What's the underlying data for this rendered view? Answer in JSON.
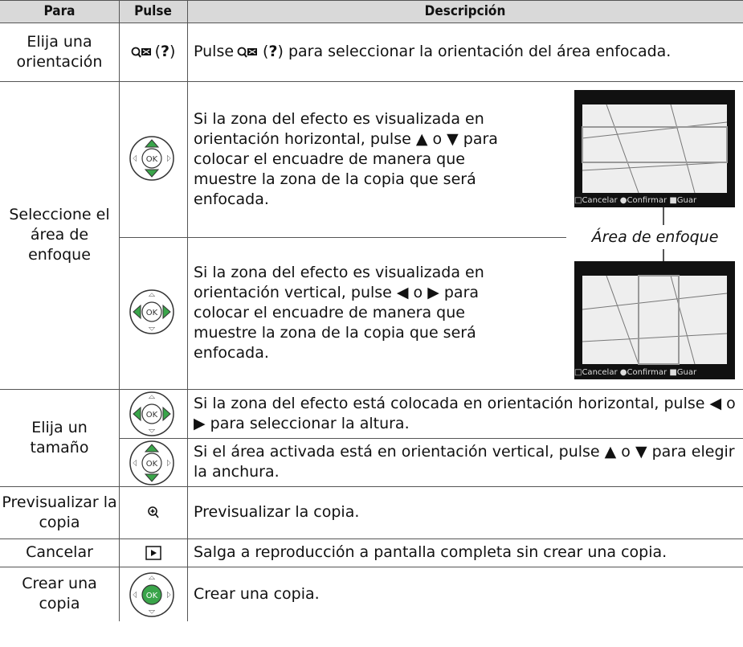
{
  "header": {
    "para": "Para",
    "pulse": "Pulse",
    "description": "Descripción"
  },
  "rows": [
    {
      "para": "Elija una orientación",
      "pulse": [
        "(",
        "?",
        ")"
      ],
      "description": [
        "Pulse",
        "(",
        "?",
        ") para seleccionar la orientación del área enfocada."
      ]
    },
    {
      "para": "Seleccione el área de enfoque",
      "items": [
        "Si la zona del efecto es visualizada en orientación horizontal, pulse ▲ o ▼ para colocar el encuadre de manera que muestre la zona de la copia que será enfocada.",
        "Si la zona del efecto es visualizada en orientación vertical, pulse ◀ o ▶ para colocar el encuadre de manera que muestre la zona de la copia que será enfocada."
      ]
    },
    {
      "para": "Elija un tamaño",
      "items": [
        "Si la zona del efecto está colocada en orientación horizontal, pulse ◀ o ▶ para seleccionar la altura.",
        "Si el área activada está en orientación vertical, pulse ▲ o ▼ para elegir la anchura."
      ]
    },
    {
      "para": "Previsualizar la copia",
      "description": "Previsualizar la copia."
    },
    {
      "para": "Cancelar",
      "description": "Salga a reproducción a pantalla completa sin crear una copia."
    },
    {
      "para": "Crear una copia",
      "description": "Crear una copia."
    }
  ],
  "callout": "Área de enfoque",
  "screen": {
    "cancel": "Cancelar",
    "confirm": "Confirmar",
    "save": "Guar"
  },
  "ok_label": "OK"
}
